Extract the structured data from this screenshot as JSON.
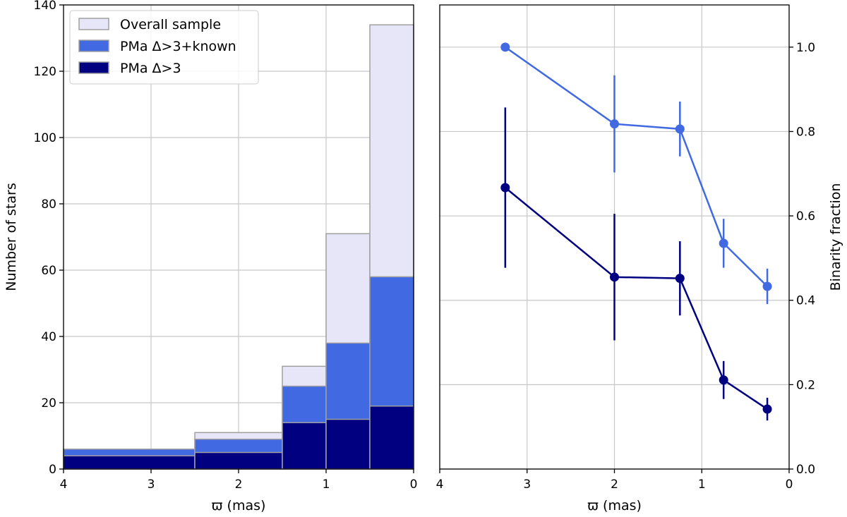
{
  "chart_data": [
    {
      "type": "bar",
      "subtype": "stacked-histogram",
      "xlabel": "ϖ (mas)",
      "ylabel": "Number of stars",
      "xlim": [
        4,
        0
      ],
      "ylim": [
        0,
        140
      ],
      "xticks": [
        4,
        3,
        2,
        1,
        0
      ],
      "yticks": [
        0,
        20,
        40,
        60,
        80,
        100,
        120,
        140
      ],
      "grid": true,
      "legend_position": "upper-left",
      "bin_edges": [
        4,
        2.5,
        1.5,
        1,
        0.5,
        0
      ],
      "series": [
        {
          "name": "Overall sample",
          "color": "#e6e6f8",
          "values": [
            6,
            11,
            31,
            71,
            134
          ]
        },
        {
          "name": "PMa Δ>3+known",
          "color": "#4169e1",
          "values": [
            6,
            9,
            25,
            38,
            58
          ]
        },
        {
          "name": "PMa Δ>3",
          "color": "#000080",
          "values": [
            4,
            5,
            14,
            15,
            19
          ]
        }
      ]
    },
    {
      "type": "line",
      "subtype": "errorbar",
      "xlabel": "ϖ (mas)",
      "ylabel": "Binarity fraction",
      "xlim": [
        4,
        0
      ],
      "ylim": [
        0,
        1.1
      ],
      "xticks": [
        4,
        3,
        2,
        1,
        0
      ],
      "yticks": [
        0.0,
        0.2,
        0.4,
        0.6,
        0.8,
        1.0
      ],
      "ytick_labels": [
        "0.0",
        "0.2",
        "0.4",
        "0.6",
        "0.8",
        "1.0"
      ],
      "grid": true,
      "x": [
        3.25,
        2.0,
        1.25,
        0.75,
        0.25
      ],
      "series": [
        {
          "name": "PMa Δ>3+known",
          "color": "#4169e1",
          "values": [
            1.0,
            0.818,
            0.806,
            0.535,
            0.433
          ],
          "err": [
            0.0,
            0.115,
            0.065,
            0.058,
            0.042
          ]
        },
        {
          "name": "PMa Δ>3",
          "color": "#000080",
          "values": [
            0.667,
            0.455,
            0.452,
            0.211,
            0.142
          ],
          "err": [
            0.19,
            0.15,
            0.088,
            0.045,
            0.027
          ]
        }
      ]
    }
  ]
}
